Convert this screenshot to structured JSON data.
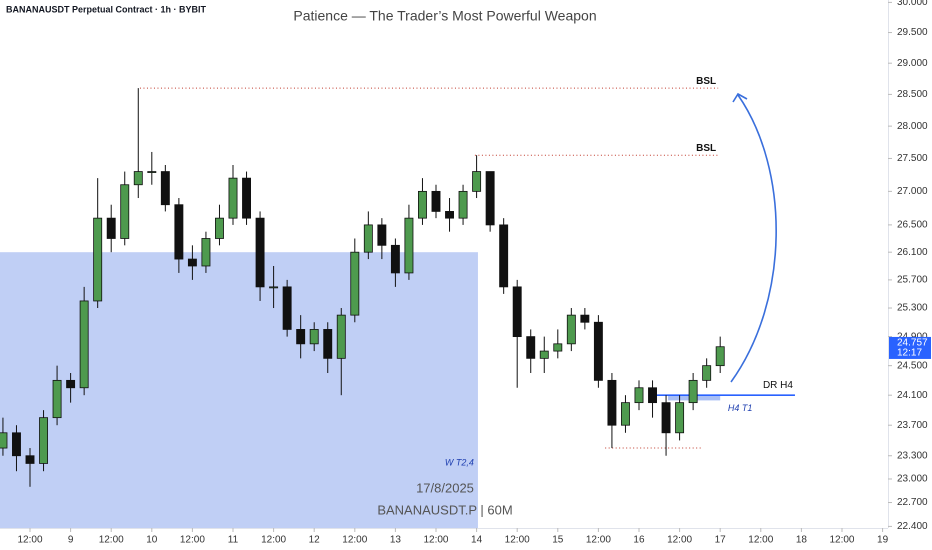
{
  "chart_data": {
    "type": "candlestick",
    "title": "Patience — The Trader’s Most Powerful Weapon",
    "symbol_header": "BANANAUSDT Perpetual Contract · 1h · BYBIT",
    "watermark": [
      "17/8/2025",
      "BANANAUSDT.P | 60M"
    ],
    "log_scale": true,
    "up_color": "#4e9a4e",
    "down_color": "#111111",
    "x": [
      4,
      8,
      12,
      16,
      20,
      24,
      28,
      32,
      36,
      40,
      44,
      48,
      52,
      56,
      60,
      64,
      68,
      72,
      76,
      80,
      84,
      88,
      92,
      96,
      100,
      104,
      108,
      112,
      116,
      120,
      124,
      128,
      132,
      136,
      140,
      144,
      148,
      152,
      156,
      160,
      164,
      168,
      172,
      176,
      180,
      184,
      188,
      192,
      196,
      200,
      204,
      208,
      212,
      216
    ],
    "open": [
      23.4,
      23.6,
      23.3,
      23.2,
      23.8,
      24.3,
      24.2,
      25.4,
      26.6,
      26.3,
      27.1,
      27.3,
      27.3,
      26.8,
      26.0,
      25.9,
      26.3,
      26.6,
      27.2,
      26.6,
      25.6,
      25.6,
      25.0,
      24.8,
      25.0,
      24.6,
      25.2,
      26.1,
      26.5,
      26.2,
      25.8,
      26.6,
      27.0,
      26.7,
      26.6,
      27.0,
      27.3,
      26.5,
      25.6,
      24.9,
      24.6,
      24.7,
      24.8,
      25.2,
      25.1,
      24.3,
      23.7,
      24.0,
      24.2,
      24.0,
      23.6,
      24.0,
      24.3,
      24.5
    ],
    "high": [
      23.8,
      23.7,
      23.4,
      23.9,
      24.5,
      24.4,
      25.6,
      27.2,
      26.8,
      27.3,
      28.6,
      27.6,
      27.4,
      26.9,
      26.2,
      26.4,
      26.8,
      27.4,
      27.3,
      26.7,
      25.9,
      25.7,
      25.2,
      25.1,
      25.1,
      25.3,
      26.3,
      26.7,
      26.6,
      26.3,
      26.8,
      27.2,
      27.1,
      26.9,
      27.1,
      27.55,
      27.3,
      26.6,
      25.7,
      25.0,
      24.9,
      25.0,
      25.3,
      25.3,
      25.2,
      24.4,
      24.1,
      24.3,
      24.3,
      24.1,
      24.1,
      24.4,
      24.6,
      24.9
    ],
    "low": [
      23.3,
      23.1,
      22.9,
      23.1,
      23.7,
      24.0,
      24.1,
      25.3,
      26.1,
      26.2,
      26.9,
      27.1,
      26.7,
      25.8,
      25.7,
      25.8,
      26.2,
      26.5,
      26.5,
      25.4,
      25.3,
      24.9,
      24.6,
      24.7,
      24.4,
      24.1,
      25.1,
      26.0,
      26.0,
      25.6,
      25.7,
      26.5,
      26.6,
      26.4,
      26.5,
      26.9,
      26.4,
      25.5,
      24.2,
      24.4,
      24.4,
      24.6,
      24.7,
      25.0,
      24.2,
      23.4,
      23.6,
      23.9,
      23.8,
      23.3,
      23.5,
      23.9,
      24.2,
      24.4
    ],
    "close": [
      23.6,
      23.3,
      23.2,
      23.8,
      24.3,
      24.2,
      25.4,
      26.6,
      26.3,
      27.1,
      27.3,
      27.3,
      26.8,
      26.0,
      25.9,
      26.3,
      26.6,
      27.2,
      26.6,
      25.6,
      25.6,
      25.0,
      24.8,
      25.0,
      24.6,
      25.2,
      26.1,
      26.5,
      26.2,
      25.8,
      26.6,
      27.0,
      26.7,
      26.6,
      27.0,
      27.3,
      26.5,
      25.6,
      24.9,
      24.6,
      24.7,
      24.8,
      25.2,
      25.1,
      24.3,
      23.7,
      24.0,
      24.2,
      24.0,
      23.6,
      24.0,
      24.3,
      24.5,
      24.76
    ],
    "xlim": [
      3.13,
      265.6
    ],
    "ylim": [
      22.38,
      30.04
    ],
    "xticks": [
      {
        "value": 12,
        "label": "12:00"
      },
      {
        "value": 24,
        "label": "9"
      },
      {
        "value": 36,
        "label": "12:00"
      },
      {
        "value": 48,
        "label": "10"
      },
      {
        "value": 60,
        "label": "12:00"
      },
      {
        "value": 72,
        "label": "11"
      },
      {
        "value": 84,
        "label": "12:00"
      },
      {
        "value": 96,
        "label": "12"
      },
      {
        "value": 108,
        "label": "12:00"
      },
      {
        "value": 120,
        "label": "13"
      },
      {
        "value": 132,
        "label": "12:00"
      },
      {
        "value": 144,
        "label": "14"
      },
      {
        "value": 156,
        "label": "12:00"
      },
      {
        "value": 168,
        "label": "15"
      },
      {
        "value": 180,
        "label": "12:00"
      },
      {
        "value": 192,
        "label": "16"
      },
      {
        "value": 204,
        "label": "12:00"
      },
      {
        "value": 216,
        "label": "17"
      },
      {
        "value": 228,
        "label": "12:00"
      },
      {
        "value": 240,
        "label": "18"
      },
      {
        "value": 252,
        "label": "12:00"
      },
      {
        "value": 264,
        "label": "19"
      }
    ],
    "yticks": [
      {
        "value": 30,
        "label": "30.000"
      },
      {
        "value": 29.5,
        "label": "29.500"
      },
      {
        "value": 29,
        "label": "29.000"
      },
      {
        "value": 28.5,
        "label": "28.500"
      },
      {
        "value": 28,
        "label": "28.000"
      },
      {
        "value": 27.5,
        "label": "27.500"
      },
      {
        "value": 27,
        "label": "27.000"
      },
      {
        "value": 26.5,
        "label": "26.500"
      },
      {
        "value": 26.1,
        "label": "26.100"
      },
      {
        "value": 25.7,
        "label": "25.700"
      },
      {
        "value": 25.3,
        "label": "25.300"
      },
      {
        "value": 24.9,
        "label": "24.900"
      },
      {
        "value": 24.5,
        "label": "24.500"
      },
      {
        "value": 24.1,
        "label": "24.100"
      },
      {
        "value": 23.7,
        "label": "23.700"
      },
      {
        "value": 23.3,
        "label": "23.300"
      },
      {
        "value": 23,
        "label": "23.000"
      },
      {
        "value": 22.7,
        "label": "22.700"
      },
      {
        "value": 22.4,
        "label": "22.400"
      }
    ],
    "zone": {
      "x_end": 144.4,
      "y_top": 26.1,
      "color": "#c0cff5",
      "label": "W T2,4"
    },
    "levels": [
      {
        "label": "BSL",
        "value": 28.6,
        "x_start": 44.5,
        "x_end": 215.4,
        "color": "#c0392b"
      },
      {
        "label": "BSL",
        "value": 27.55,
        "x_start": 143.5,
        "x_end": 215.4,
        "color": "#c0392b"
      },
      {
        "value": 23.4,
        "x_start": 182,
        "x_end": 210.9,
        "color": "#c0392b"
      }
    ],
    "dr_line": {
      "label": "DR H4",
      "value": 24.1,
      "x_start": 195.3,
      "x_end": 238.1,
      "color": "#2962ff"
    },
    "h4_zone": {
      "label": "H4 T1",
      "y_top": 24.1,
      "y_bottom": 24.03,
      "x_start": 200.6,
      "x_end": 216,
      "color": "#a9bff5"
    },
    "last_price": 24.757,
    "countdown": "12:17",
    "last_price_color": "#2962ff"
  }
}
